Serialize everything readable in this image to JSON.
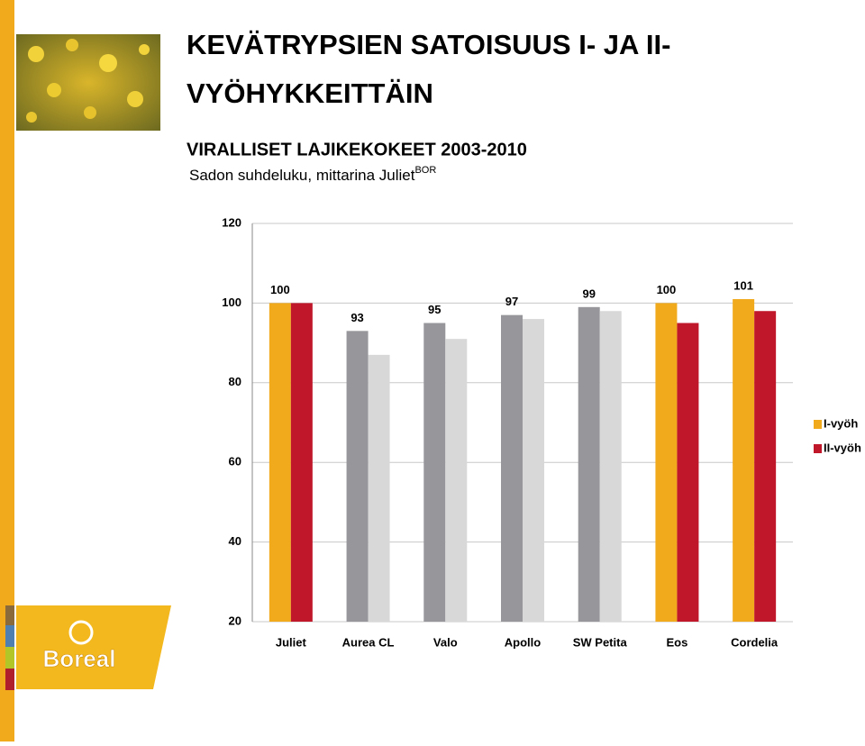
{
  "title_lines": [
    "KEVÄTRYPSIEN SATOISUUS I- JA II-",
    "VYÖHYKKEITTÄIN"
  ],
  "heading": "VIRALLISET LAJIKEKOKEET 2003-2010",
  "subtitle": "Sadon suhdeluku, mittarina Juliet",
  "subtitle_sup": "BOR",
  "logo": "Boreal",
  "chart_data": {
    "type": "bar",
    "categories": [
      "Juliet",
      "Aurea CL",
      "Valo",
      "Apollo",
      "SW Petita",
      "Eos",
      "Cordelia"
    ],
    "series": [
      {
        "name": "I-vyöh",
        "color": "#f0aa1c",
        "colors": [
          "#f0aa1c",
          "#97969b",
          "#97969b",
          "#97969b",
          "#97969b",
          "#f0aa1c",
          "#f0aa1c"
        ],
        "values": [
          100,
          93,
          95,
          97,
          99,
          100,
          101
        ],
        "data_labels": true
      },
      {
        "name": "II-vyöh",
        "color": "#c0172a",
        "colors": [
          "#c0172a",
          "#d8d8d8",
          "#d8d8d8",
          "#d8d8d8",
          "#d8d8d8",
          "#c0172a",
          "#c0172a"
        ],
        "values": [
          100,
          87,
          91,
          96,
          98,
          95,
          98
        ],
        "data_labels": false
      }
    ],
    "ylim": [
      20,
      120
    ],
    "yticks": [
      20,
      40,
      60,
      80,
      100,
      120
    ],
    "grid": true,
    "legend": "right"
  }
}
